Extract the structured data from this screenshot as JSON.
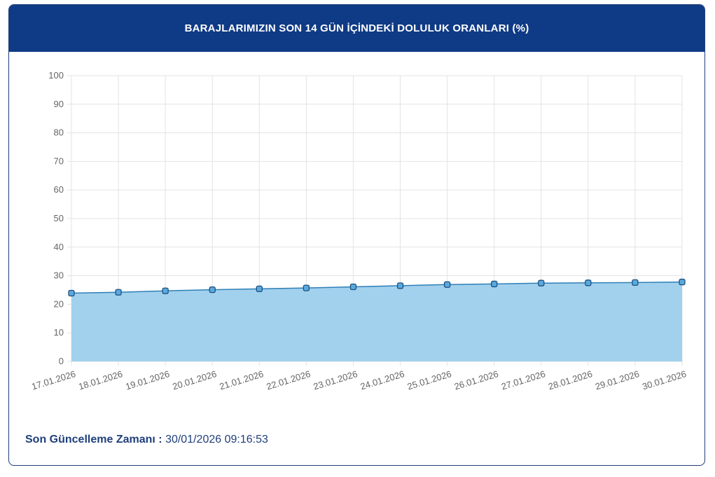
{
  "header": {
    "title": "BARAJLARIMIZIN SON 14 GÜN İÇİNDEKİ DOLULUK ORANLARI (%)"
  },
  "footer": {
    "label": "Son Güncelleme Zamanı :",
    "value": "30/01/2026 09:16:53"
  },
  "chart_data": {
    "type": "area",
    "title": "BARAJLARIMIZIN SON 14 GÜN İÇİNDEKİ DOLULUK ORANLARI (%)",
    "categories": [
      "17.01.2026",
      "18.01.2026",
      "19.01.2026",
      "20.01.2026",
      "21.01.2026",
      "22.01.2026",
      "23.01.2026",
      "24.01.2026",
      "25.01.2026",
      "26.01.2026",
      "27.01.2026",
      "28.01.2026",
      "29.01.2026",
      "30.01.2026"
    ],
    "values": [
      23.9,
      24.2,
      24.7,
      25.1,
      25.4,
      25.7,
      26.1,
      26.5,
      26.9,
      27.1,
      27.4,
      27.5,
      27.6,
      27.8
    ],
    "ylim": [
      0,
      100
    ],
    "yticks": [
      0,
      10,
      20,
      30,
      40,
      50,
      60,
      70,
      80,
      90,
      100
    ],
    "grid": true,
    "colors": {
      "line": "#2f7fb8",
      "fill": "#9dcfec",
      "marker": "#5aa9dd",
      "header": "#0f3a85"
    }
  }
}
